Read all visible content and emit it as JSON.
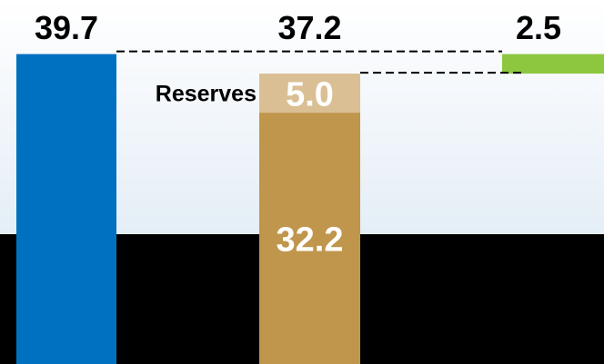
{
  "chart_data": {
    "type": "bar",
    "title": "",
    "xlabel": "",
    "ylabel": "",
    "grid": false,
    "legend": "none",
    "bars": [
      {
        "total": 39.7,
        "total_label": "39.7",
        "segments": [
          {
            "value": 39.7,
            "color": "#0070C0"
          }
        ]
      },
      {
        "total": 37.2,
        "total_label": "37.2",
        "segments": [
          {
            "value": 32.2,
            "label": "32.2",
            "color": "#C0954C"
          },
          {
            "value": 5.0,
            "label": "5.0",
            "color": "#D9BF93",
            "name": "Reserves"
          }
        ]
      },
      {
        "total": 2.5,
        "total_label": "2.5",
        "floating": true,
        "base": 37.2,
        "segments": [
          {
            "value": 2.5,
            "color": "#8DC63F"
          }
        ]
      }
    ],
    "connectors": "dashed",
    "colors": {
      "band_dark": "#000000",
      "band_light": "#EAF2F8",
      "connector": "#000000",
      "total_label": "#000000",
      "segment_label": "#FFFFFF"
    }
  }
}
